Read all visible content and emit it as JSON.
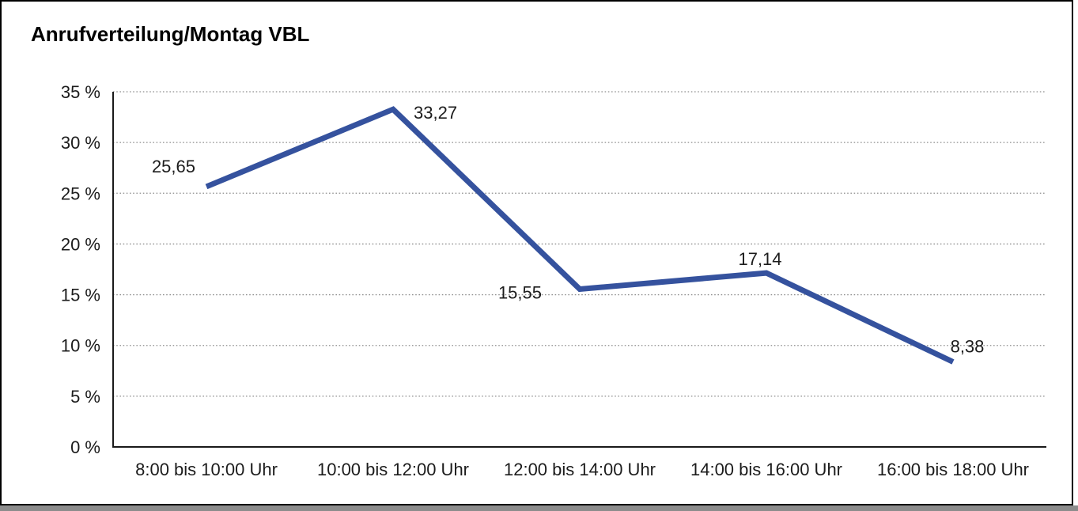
{
  "title": "Anrufverteilung/Montag VBL",
  "chart_data": {
    "type": "line",
    "title": "Anrufverteilung/Montag VBL",
    "categories": [
      "8:00 bis 10:00 Uhr",
      "10:00 bis 12:00 Uhr",
      "12:00 bis 14:00 Uhr",
      "14:00 bis 16:00 Uhr",
      "16:00 bis 18:00 Uhr"
    ],
    "values": [
      25.65,
      33.27,
      15.55,
      17.14,
      8.38
    ],
    "data_labels": [
      "25,65",
      "33,27",
      "15,55",
      "17,14",
      "8,38"
    ],
    "ytick_labels": [
      "0 %",
      "5 %",
      "10 %",
      "15 %",
      "20 %",
      "25 %",
      "30 %",
      "35 %"
    ],
    "ylim": [
      0,
      35
    ],
    "ystep": 5,
    "xlabel": "",
    "ylabel": "",
    "grid": "horizontal-dotted",
    "legend": "none",
    "series_color": "#35529e",
    "axis_color": "#1a1a1a",
    "grid_color": "#8f8f8f",
    "label_color": "#1c1c1c"
  }
}
